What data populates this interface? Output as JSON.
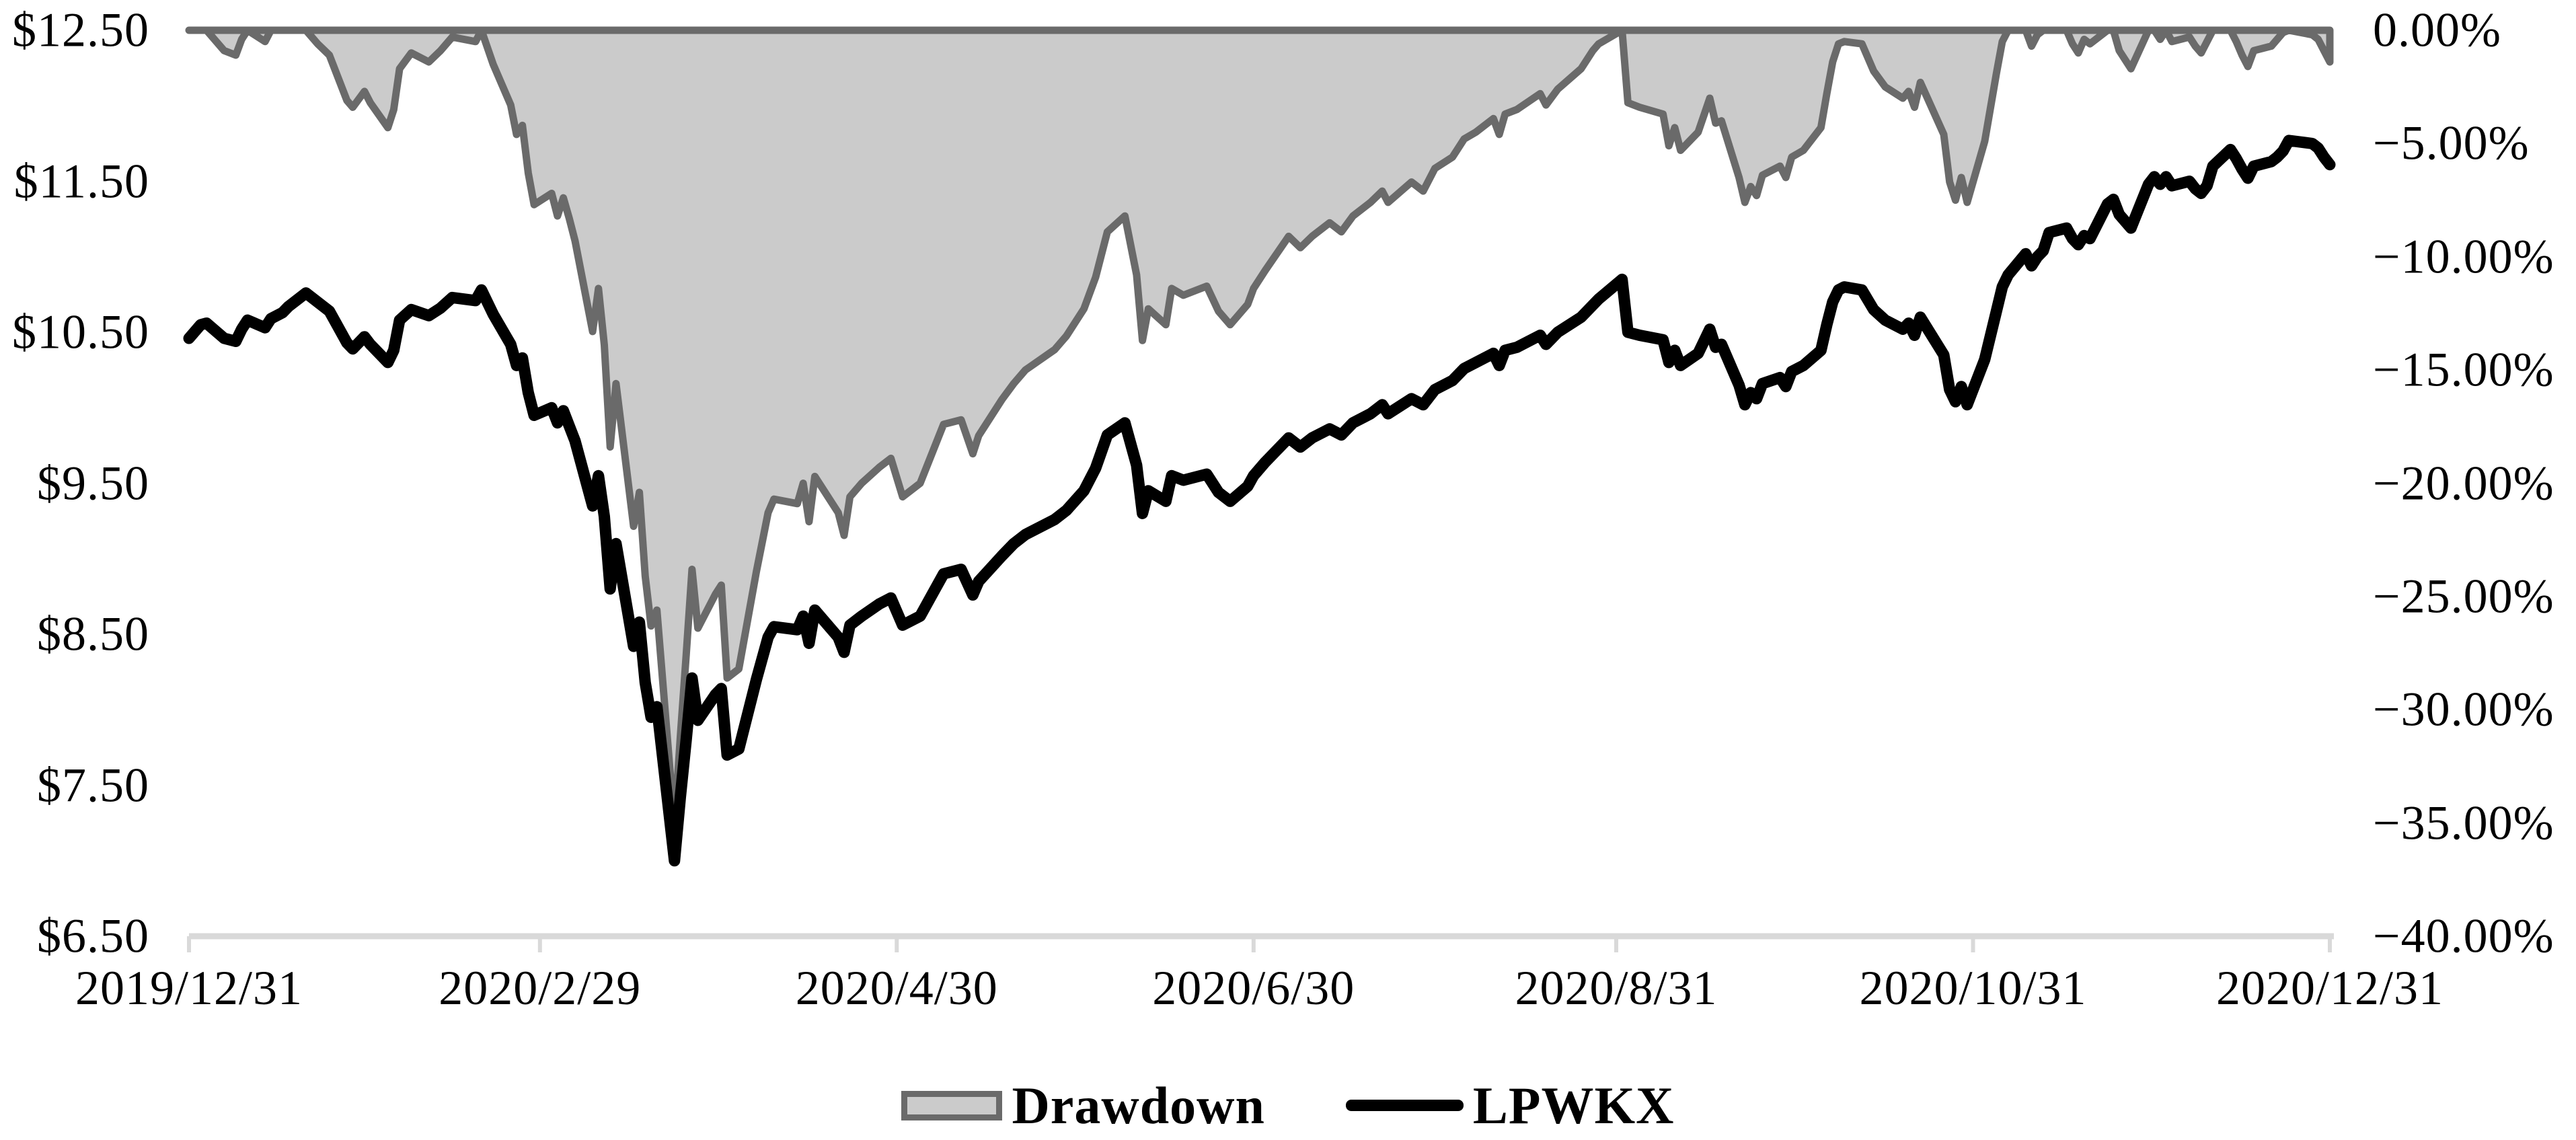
{
  "chart_data": {
    "type": "area+line combo",
    "title": "",
    "background": "#ffffff",
    "grid": "off",
    "x_axis": {
      "tick_labels": [
        "2019/12/31",
        "2020/2/29",
        "2020/4/30",
        "2020/6/30",
        "2020/8/31",
        "2020/10/31",
        "2020/12/31"
      ],
      "tick_dates": [
        "2019-12-31",
        "2020-02-29",
        "2020-04-30",
        "2020-06-30",
        "2020-08-31",
        "2020-10-31",
        "2020-12-31"
      ]
    },
    "left_axis": {
      "unit": "USD",
      "min": 6.5,
      "max": 12.5,
      "tick_values": [
        12.5,
        11.5,
        10.5,
        9.5,
        8.5,
        7.5,
        6.5
      ],
      "tick_labels": [
        "$12.50",
        "$11.50",
        "$10.50",
        "$9.50",
        "$8.50",
        "$7.50",
        "$6.50"
      ]
    },
    "right_axis": {
      "unit": "%",
      "min": -40,
      "max": 0,
      "tick_values": [
        0,
        -5,
        -10,
        -15,
        -20,
        -25,
        -30,
        -35,
        -40
      ],
      "tick_labels": [
        "0.00%",
        "−5.00%",
        "−10.00%",
        "−15.00%",
        "−20.00%",
        "−25.00%",
        "−30.00%",
        "−35.00%",
        "−40.00%"
      ]
    },
    "series_meta": [
      {
        "name": "Drawdown",
        "type": "area",
        "axis": "right",
        "fill": "#cbcbcb",
        "stroke": "#6a6a6a",
        "column": "drawdown_pct"
      },
      {
        "name": "LPWKX",
        "type": "line",
        "axis": "left",
        "stroke": "#000000",
        "column": "lpwkx_nav_usd"
      }
    ],
    "legend": {
      "position": "bottom-center",
      "items": [
        {
          "label": "Drawdown",
          "swatch": "area"
        },
        {
          "label": "LPWKX",
          "swatch": "line"
        }
      ]
    },
    "columns": [
      "date",
      "lpwkx_nav_usd",
      "drawdown_pct"
    ],
    "points": [
      [
        "2019-12-31",
        10.46,
        0.0
      ],
      [
        "2020-01-02",
        10.55,
        0.0
      ],
      [
        "2020-01-03",
        10.56,
        0.0
      ],
      [
        "2020-01-06",
        10.46,
        -0.9
      ],
      [
        "2020-01-08",
        10.44,
        -1.1
      ],
      [
        "2020-01-09",
        10.52,
        -0.4
      ],
      [
        "2020-01-10",
        10.58,
        0.0
      ],
      [
        "2020-01-13",
        10.53,
        -0.5
      ],
      [
        "2020-01-14",
        10.59,
        0.0
      ],
      [
        "2020-01-16",
        10.63,
        0.0
      ],
      [
        "2020-01-17",
        10.67,
        0.0
      ],
      [
        "2020-01-20",
        10.76,
        0.0
      ],
      [
        "2020-01-22",
        10.7,
        -0.6
      ],
      [
        "2020-01-24",
        10.64,
        -1.1
      ],
      [
        "2020-01-27",
        10.43,
        -3.1
      ],
      [
        "2020-01-28",
        10.39,
        -3.4
      ],
      [
        "2020-01-30",
        10.47,
        -2.7
      ],
      [
        "2020-01-31",
        10.42,
        -3.2
      ],
      [
        "2020-02-03",
        10.3,
        -4.3
      ],
      [
        "2020-02-04",
        10.38,
        -3.5
      ],
      [
        "2020-02-05",
        10.58,
        -1.7
      ],
      [
        "2020-02-07",
        10.65,
        -1.0
      ],
      [
        "2020-02-10",
        10.61,
        -1.4
      ],
      [
        "2020-02-12",
        10.66,
        -0.9
      ],
      [
        "2020-02-14",
        10.73,
        -0.3
      ],
      [
        "2020-02-18",
        10.71,
        -0.5
      ],
      [
        "2020-02-19",
        10.78,
        0.0
      ],
      [
        "2020-02-21",
        10.62,
        -1.5
      ],
      [
        "2020-02-24",
        10.42,
        -3.3
      ],
      [
        "2020-02-25",
        10.28,
        -4.6
      ],
      [
        "2020-02-26",
        10.33,
        -4.2
      ],
      [
        "2020-02-27",
        10.1,
        -6.3
      ],
      [
        "2020-02-28",
        9.95,
        -7.7
      ],
      [
        "2020-03-02",
        10.0,
        -7.2
      ],
      [
        "2020-03-03",
        9.9,
        -8.2
      ],
      [
        "2020-03-04",
        9.98,
        -7.4
      ],
      [
        "2020-03-05",
        9.88,
        -8.3
      ],
      [
        "2020-03-06",
        9.78,
        -9.3
      ],
      [
        "2020-03-09",
        9.35,
        -13.3
      ],
      [
        "2020-03-10",
        9.55,
        -11.4
      ],
      [
        "2020-03-11",
        9.28,
        -13.9
      ],
      [
        "2020-03-12",
        8.8,
        -18.4
      ],
      [
        "2020-03-13",
        9.1,
        -15.6
      ],
      [
        "2020-03-16",
        8.42,
        -21.9
      ],
      [
        "2020-03-17",
        8.58,
        -20.4
      ],
      [
        "2020-03-18",
        8.18,
        -24.1
      ],
      [
        "2020-03-19",
        7.95,
        -26.3
      ],
      [
        "2020-03-20",
        8.02,
        -25.6
      ],
      [
        "2020-03-23",
        7.0,
        -35.1
      ],
      [
        "2020-03-24",
        7.42,
        -31.2
      ],
      [
        "2020-03-25",
        7.8,
        -27.6
      ],
      [
        "2020-03-26",
        8.21,
        -23.8
      ],
      [
        "2020-03-27",
        7.93,
        -26.4
      ],
      [
        "2020-03-30",
        8.1,
        -24.9
      ],
      [
        "2020-03-31",
        8.14,
        -24.5
      ],
      [
        "2020-04-01",
        7.7,
        -28.6
      ],
      [
        "2020-04-03",
        7.74,
        -28.2
      ],
      [
        "2020-04-06",
        8.2,
        -23.9
      ],
      [
        "2020-04-08",
        8.48,
        -21.3
      ],
      [
        "2020-04-09",
        8.55,
        -20.7
      ],
      [
        "2020-04-13",
        8.53,
        -20.9
      ],
      [
        "2020-04-14",
        8.62,
        -20.0
      ],
      [
        "2020-04-15",
        8.44,
        -21.7
      ],
      [
        "2020-04-16",
        8.66,
        -19.7
      ],
      [
        "2020-04-20",
        8.48,
        -21.3
      ],
      [
        "2020-04-21",
        8.38,
        -22.3
      ],
      [
        "2020-04-22",
        8.56,
        -20.6
      ],
      [
        "2020-04-24",
        8.62,
        -20.0
      ],
      [
        "2020-04-27",
        8.7,
        -19.3
      ],
      [
        "2020-04-29",
        8.74,
        -18.9
      ],
      [
        "2020-05-01",
        8.56,
        -20.6
      ],
      [
        "2020-05-04",
        8.62,
        -20.0
      ],
      [
        "2020-05-06",
        8.76,
        -18.7
      ],
      [
        "2020-05-08",
        8.9,
        -17.4
      ],
      [
        "2020-05-11",
        8.93,
        -17.2
      ],
      [
        "2020-05-13",
        8.76,
        -18.7
      ],
      [
        "2020-05-14",
        8.85,
        -17.9
      ],
      [
        "2020-05-18",
        9.02,
        -16.3
      ],
      [
        "2020-05-20",
        9.1,
        -15.6
      ],
      [
        "2020-05-22",
        9.16,
        -15.0
      ],
      [
        "2020-05-27",
        9.26,
        -14.1
      ],
      [
        "2020-05-29",
        9.32,
        -13.5
      ],
      [
        "2020-06-01",
        9.45,
        -12.3
      ],
      [
        "2020-06-03",
        9.6,
        -10.9
      ],
      [
        "2020-06-05",
        9.82,
        -8.9
      ],
      [
        "2020-06-08",
        9.9,
        -8.2
      ],
      [
        "2020-06-10",
        9.62,
        -10.8
      ],
      [
        "2020-06-11",
        9.3,
        -13.7
      ],
      [
        "2020-06-12",
        9.45,
        -12.3
      ],
      [
        "2020-06-15",
        9.38,
        -13.0
      ],
      [
        "2020-06-16",
        9.55,
        -11.4
      ],
      [
        "2020-06-18",
        9.52,
        -11.7
      ],
      [
        "2020-06-22",
        9.56,
        -11.3
      ],
      [
        "2020-06-24",
        9.44,
        -12.4
      ],
      [
        "2020-06-26",
        9.38,
        -13.0
      ],
      [
        "2020-06-29",
        9.48,
        -12.1
      ],
      [
        "2020-06-30",
        9.55,
        -11.4
      ],
      [
        "2020-07-02",
        9.64,
        -10.6
      ],
      [
        "2020-07-06",
        9.8,
        -9.1
      ],
      [
        "2020-07-08",
        9.74,
        -9.6
      ],
      [
        "2020-07-10",
        9.8,
        -9.1
      ],
      [
        "2020-07-13",
        9.86,
        -8.5
      ],
      [
        "2020-07-15",
        9.82,
        -8.9
      ],
      [
        "2020-07-17",
        9.9,
        -8.2
      ],
      [
        "2020-07-20",
        9.96,
        -7.6
      ],
      [
        "2020-07-22",
        10.02,
        -7.1
      ],
      [
        "2020-07-23",
        9.96,
        -7.6
      ],
      [
        "2020-07-27",
        10.06,
        -6.7
      ],
      [
        "2020-07-29",
        10.02,
        -7.1
      ],
      [
        "2020-07-31",
        10.12,
        -6.1
      ],
      [
        "2020-08-03",
        10.18,
        -5.6
      ],
      [
        "2020-08-05",
        10.26,
        -4.8
      ],
      [
        "2020-08-07",
        10.3,
        -4.5
      ],
      [
        "2020-08-10",
        10.36,
        -3.9
      ],
      [
        "2020-08-11",
        10.28,
        -4.6
      ],
      [
        "2020-08-12",
        10.38,
        -3.7
      ],
      [
        "2020-08-14",
        10.4,
        -3.5
      ],
      [
        "2020-08-18",
        10.48,
        -2.8
      ],
      [
        "2020-08-19",
        10.42,
        -3.3
      ],
      [
        "2020-08-21",
        10.5,
        -2.6
      ],
      [
        "2020-08-25",
        10.6,
        -1.7
      ],
      [
        "2020-08-27",
        10.68,
        -0.9
      ],
      [
        "2020-08-28",
        10.72,
        -0.6
      ],
      [
        "2020-09-01",
        10.85,
        0.0
      ],
      [
        "2020-09-02",
        10.5,
        -3.2
      ],
      [
        "2020-09-04",
        10.48,
        -3.4
      ],
      [
        "2020-09-08",
        10.45,
        -3.7
      ],
      [
        "2020-09-09",
        10.3,
        -5.1
      ],
      [
        "2020-09-10",
        10.38,
        -4.3
      ],
      [
        "2020-09-11",
        10.28,
        -5.3
      ],
      [
        "2020-09-14",
        10.36,
        -4.5
      ],
      [
        "2020-09-16",
        10.52,
        -3.0
      ],
      [
        "2020-09-17",
        10.4,
        -4.1
      ],
      [
        "2020-09-18",
        10.42,
        -4.0
      ],
      [
        "2020-09-21",
        10.15,
        -6.5
      ],
      [
        "2020-09-22",
        10.02,
        -7.6
      ],
      [
        "2020-09-23",
        10.1,
        -6.9
      ],
      [
        "2020-09-24",
        10.06,
        -7.3
      ],
      [
        "2020-09-25",
        10.16,
        -6.4
      ],
      [
        "2020-09-28",
        10.2,
        -6.0
      ],
      [
        "2020-09-29",
        10.14,
        -6.5
      ],
      [
        "2020-09-30",
        10.24,
        -5.6
      ],
      [
        "2020-10-02",
        10.28,
        -5.3
      ],
      [
        "2020-10-05",
        10.38,
        -4.3
      ],
      [
        "2020-10-06",
        10.55,
        -2.8
      ],
      [
        "2020-10-07",
        10.7,
        -1.4
      ],
      [
        "2020-10-08",
        10.78,
        -0.6
      ],
      [
        "2020-10-09",
        10.8,
        -0.5
      ],
      [
        "2020-10-12",
        10.78,
        -0.6
      ],
      [
        "2020-10-14",
        10.65,
        -1.8
      ],
      [
        "2020-10-16",
        10.58,
        -2.5
      ],
      [
        "2020-10-19",
        10.52,
        -3.0
      ],
      [
        "2020-10-20",
        10.56,
        -2.7
      ],
      [
        "2020-10-21",
        10.48,
        -3.4
      ],
      [
        "2020-10-22",
        10.6,
        -2.3
      ],
      [
        "2020-10-26",
        10.35,
        -4.6
      ],
      [
        "2020-10-27",
        10.12,
        -6.7
      ],
      [
        "2020-10-28",
        10.04,
        -7.5
      ],
      [
        "2020-10-29",
        10.14,
        -6.5
      ],
      [
        "2020-10-30",
        10.02,
        -7.6
      ],
      [
        "2020-11-02",
        10.32,
        -4.9
      ],
      [
        "2020-11-04",
        10.64,
        -1.9
      ],
      [
        "2020-11-05",
        10.8,
        -0.5
      ],
      [
        "2020-11-06",
        10.88,
        0.0
      ],
      [
        "2020-11-09",
        11.02,
        0.0
      ],
      [
        "2020-11-10",
        10.94,
        -0.7
      ],
      [
        "2020-11-11",
        11.0,
        -0.2
      ],
      [
        "2020-11-12",
        11.04,
        0.0
      ],
      [
        "2020-11-13",
        11.16,
        0.0
      ],
      [
        "2020-11-16",
        11.19,
        0.0
      ],
      [
        "2020-11-17",
        11.12,
        -0.6
      ],
      [
        "2020-11-18",
        11.08,
        -1.0
      ],
      [
        "2020-11-19",
        11.14,
        -0.4
      ],
      [
        "2020-11-20",
        11.12,
        -0.6
      ],
      [
        "2020-11-23",
        11.35,
        0.0
      ],
      [
        "2020-11-24",
        11.38,
        0.0
      ],
      [
        "2020-11-25",
        11.28,
        -0.9
      ],
      [
        "2020-11-27",
        11.19,
        -1.7
      ],
      [
        "2020-11-30",
        11.48,
        0.0
      ],
      [
        "2020-12-01",
        11.53,
        0.0
      ],
      [
        "2020-12-02",
        11.48,
        -0.4
      ],
      [
        "2020-12-03",
        11.53,
        0.0
      ],
      [
        "2020-12-04",
        11.47,
        -0.5
      ],
      [
        "2020-12-07",
        11.5,
        -0.3
      ],
      [
        "2020-12-08",
        11.45,
        -0.7
      ],
      [
        "2020-12-09",
        11.42,
        -1.0
      ],
      [
        "2020-12-10",
        11.47,
        -0.5
      ],
      [
        "2020-12-11",
        11.6,
        0.0
      ],
      [
        "2020-12-14",
        11.71,
        0.0
      ],
      [
        "2020-12-15",
        11.65,
        -0.5
      ],
      [
        "2020-12-16",
        11.58,
        -1.1
      ],
      [
        "2020-12-17",
        11.52,
        -1.6
      ],
      [
        "2020-12-18",
        11.6,
        -0.9
      ],
      [
        "2020-12-21",
        11.63,
        -0.7
      ],
      [
        "2020-12-22",
        11.66,
        -0.4
      ],
      [
        "2020-12-23",
        11.7,
        -0.1
      ],
      [
        "2020-12-24",
        11.77,
        0.0
      ],
      [
        "2020-12-28",
        11.75,
        -0.2
      ],
      [
        "2020-12-29",
        11.72,
        -0.4
      ],
      [
        "2020-12-30",
        11.66,
        -0.9
      ],
      [
        "2020-12-31",
        11.61,
        -1.4
      ]
    ]
  },
  "colors": {
    "area_fill": "#cbcbcb",
    "area_stroke": "#6a6a6a",
    "price_line": "#000000",
    "axis_line": "#d9d9d9",
    "text": "#000000",
    "background": "#ffffff"
  }
}
